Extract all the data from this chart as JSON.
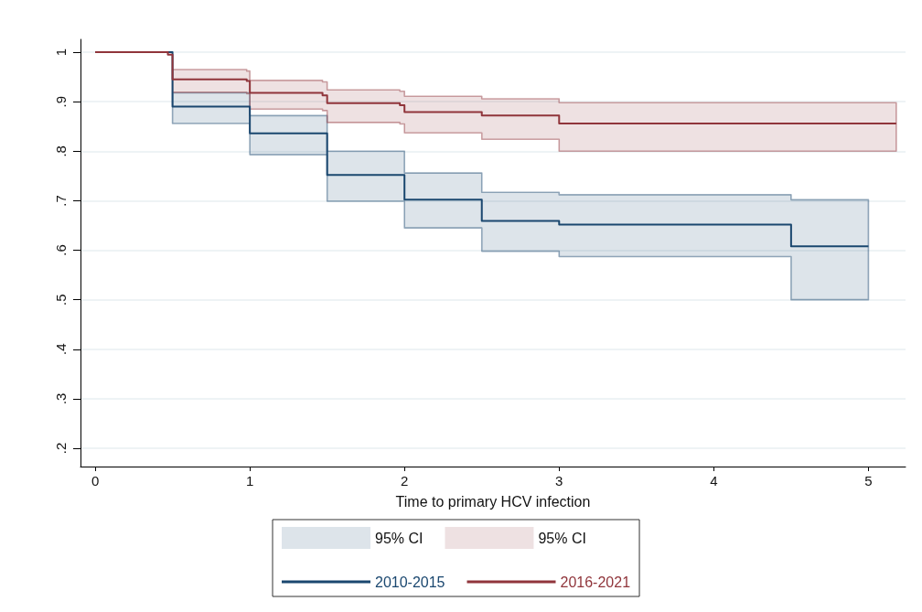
{
  "chart_data": {
    "type": "step",
    "xlabel": "Time to primary HCV infection",
    "xlim": [
      -0.095,
      5.24
    ],
    "xticks": [
      0,
      1,
      2,
      3,
      4,
      5
    ],
    "ylim": [
      0.163,
      1.026
    ],
    "yticks": [
      {
        "value": 0.2,
        "label": ".2"
      },
      {
        "value": 0.3,
        "label": ".3"
      },
      {
        "value": 0.4,
        "label": ".4"
      },
      {
        "value": 0.5,
        "label": ".5"
      },
      {
        "value": 0.6,
        "label": ".6"
      },
      {
        "value": 0.7,
        "label": ".7"
      },
      {
        "value": 0.8,
        "label": ".8"
      },
      {
        "value": 0.9,
        "label": ".9"
      },
      1
    ],
    "grid": "y",
    "legend": "bottom",
    "marker": "none",
    "line_style": "solid",
    "annotations": [
      "95% CI",
      "95% CI"
    ],
    "series": [
      {
        "name": "2010-2015",
        "color": "#1a476f",
        "x": [
          0,
          0.5,
          1,
          1.5,
          2,
          2.5,
          3,
          4.5,
          5
        ],
        "values": [
          1,
          0.89,
          0.836,
          0.752,
          0.702,
          0.659,
          0.652,
          0.608,
          0.608
        ],
        "lower": [
          null,
          0.856,
          0.793,
          0.699,
          0.645,
          0.598,
          0.587,
          0.5,
          0.5
        ],
        "upper": [
          null,
          0.918,
          0.872,
          0.8,
          0.756,
          0.717,
          0.712,
          0.702,
          0.702
        ]
      },
      {
        "name": "2016-2021",
        "color": "#90353b",
        "x": [
          0,
          0.47,
          0.5,
          0.98,
          1,
          1.47,
          1.5,
          1.97,
          2,
          2.5,
          3,
          5.18
        ],
        "values": [
          1,
          0.995,
          0.945,
          0.942,
          0.918,
          0.913,
          0.897,
          0.893,
          0.879,
          0.872,
          0.856,
          0.856
        ],
        "lower": [
          null,
          null,
          0.919,
          0.916,
          0.885,
          0.882,
          0.858,
          0.855,
          0.837,
          0.824,
          0.8,
          0.8
        ],
        "upper": [
          null,
          null,
          0.965,
          0.962,
          0.943,
          0.94,
          0.924,
          0.921,
          0.911,
          0.906,
          0.898,
          0.898
        ]
      }
    ]
  }
}
